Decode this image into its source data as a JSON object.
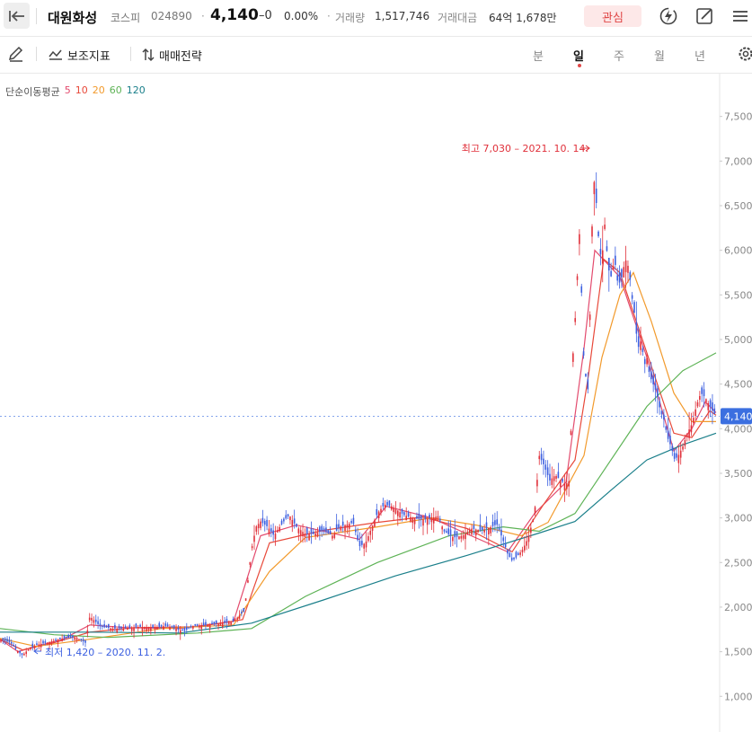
{
  "header": {
    "stock_name": "대원화성",
    "market": "코스피",
    "code": "024890",
    "separator": "·",
    "price": "4,140",
    "change": "–0",
    "change_pct": "0.00%",
    "volume_label": "거래량",
    "volume_value": "1,517,746",
    "amount_label": "거래대금",
    "amount_value": "64억 1,678만",
    "favorite_label": "관심"
  },
  "toolbar": {
    "indicator_label": "보조지표",
    "strategy_label": "매매전략",
    "periods": [
      "분",
      "일",
      "주",
      "월",
      "년"
    ],
    "active_period": "일"
  },
  "legend": {
    "title": "단순이동평균",
    "items": [
      {
        "label": "5",
        "color": "#e34b6e"
      },
      {
        "label": "10",
        "color": "#e8493a"
      },
      {
        "label": "20",
        "color": "#f29a2c"
      },
      {
        "label": "60",
        "color": "#5eb356"
      },
      {
        "label": "120",
        "color": "#1a7f8a"
      }
    ]
  },
  "colors": {
    "up": "#e0303a",
    "down": "#3b5fe0",
    "accent": "#e04848",
    "price_tag": "#3b6fe0"
  },
  "chart_data": {
    "type": "candlestick",
    "y_ticks": [
      "7,500",
      "7,000",
      "6,500",
      "6,000",
      "5,500",
      "5,000",
      "4,500",
      "4,000",
      "3,500",
      "3,000",
      "2,500",
      "2,000",
      "1,500",
      "1,000"
    ],
    "ylim": [
      600,
      7980
    ],
    "current_price": 4140,
    "current_price_label": "4,140",
    "high_annotation": "최고 7,030 – 2021. 10. 14.",
    "low_annotation": "최저 1,420 – 2020. 11. 2.",
    "close_anchors": [
      [
        0,
        1640
      ],
      [
        12,
        1600
      ],
      [
        20,
        1500
      ],
      [
        25,
        1460
      ],
      [
        32,
        1530
      ],
      [
        42,
        1580
      ],
      [
        60,
        1620
      ],
      [
        70,
        1650
      ],
      [
        85,
        1660
      ],
      [
        95,
        1600
      ],
      [
        100,
        1900
      ],
      [
        105,
        1850
      ],
      [
        112,
        1780
      ],
      [
        125,
        1760
      ],
      [
        140,
        1760
      ],
      [
        155,
        1780
      ],
      [
        170,
        1770
      ],
      [
        185,
        1790
      ],
      [
        195,
        1760
      ],
      [
        205,
        1730
      ],
      [
        215,
        1790
      ],
      [
        230,
        1800
      ],
      [
        245,
        1820
      ],
      [
        258,
        1830
      ],
      [
        265,
        1890
      ],
      [
        272,
        1960
      ],
      [
        280,
        2650
      ],
      [
        285,
        2900
      ],
      [
        290,
        2960
      ],
      [
        298,
        2900
      ],
      [
        305,
        2800
      ],
      [
        310,
        2880
      ],
      [
        318,
        2990
      ],
      [
        322,
        3030
      ],
      [
        330,
        2900
      ],
      [
        340,
        2820
      ],
      [
        350,
        2820
      ],
      [
        360,
        2860
      ],
      [
        370,
        2800
      ],
      [
        378,
        2900
      ],
      [
        385,
        2920
      ],
      [
        393,
        2950
      ],
      [
        400,
        2680
      ],
      [
        407,
        2720
      ],
      [
        414,
        2900
      ],
      [
        420,
        3050
      ],
      [
        428,
        3150
      ],
      [
        436,
        3130
      ],
      [
        450,
        3030
      ],
      [
        460,
        3000
      ],
      [
        470,
        2980
      ],
      [
        480,
        3000
      ],
      [
        488,
        3020
      ],
      [
        494,
        2850
      ],
      [
        505,
        2780
      ],
      [
        515,
        2800
      ],
      [
        525,
        2880
      ],
      [
        535,
        2860
      ],
      [
        545,
        2890
      ],
      [
        553,
        2930
      ],
      [
        560,
        2750
      ],
      [
        565,
        2600
      ],
      [
        570,
        2520
      ],
      [
        575,
        2560
      ],
      [
        582,
        2650
      ],
      [
        588,
        2780
      ],
      [
        595,
        3050
      ],
      [
        600,
        3700
      ],
      [
        605,
        3600
      ],
      [
        612,
        3420
      ],
      [
        618,
        3480
      ],
      [
        624,
        3420
      ],
      [
        630,
        3380
      ],
      [
        634,
        3420
      ],
      [
        638,
        4900
      ],
      [
        640,
        5200
      ],
      [
        643,
        5800
      ],
      [
        645,
        6200
      ],
      [
        650,
        4700
      ],
      [
        655,
        4400
      ],
      [
        658,
        6000
      ],
      [
        661,
        6800
      ],
      [
        664,
        6500
      ],
      [
        667,
        6000
      ],
      [
        670,
        5900
      ],
      [
        673,
        6300
      ],
      [
        677,
        5800
      ],
      [
        680,
        5700
      ],
      [
        684,
        5900
      ],
      [
        688,
        5600
      ],
      [
        692,
        5700
      ],
      [
        696,
        5900
      ],
      [
        700,
        5800
      ],
      [
        703,
        5500
      ],
      [
        706,
        5300
      ],
      [
        710,
        4900
      ],
      [
        714,
        5000
      ],
      [
        717,
        4700
      ],
      [
        720,
        4800
      ],
      [
        723,
        4600
      ],
      [
        727,
        4500
      ],
      [
        731,
        4400
      ],
      [
        735,
        4200
      ],
      [
        739,
        4100
      ],
      [
        743,
        3900
      ],
      [
        747,
        3800
      ],
      [
        751,
        3650
      ],
      [
        755,
        3700
      ],
      [
        760,
        3800
      ],
      [
        765,
        3950
      ],
      [
        770,
        4050
      ],
      [
        775,
        4250
      ],
      [
        780,
        4400
      ],
      [
        785,
        4350
      ],
      [
        790,
        4250
      ],
      [
        793,
        4200
      ],
      [
        797,
        4140
      ]
    ],
    "ma": [
      {
        "name": "5",
        "points": [
          [
            0,
            1640
          ],
          [
            20,
            1500
          ],
          [
            40,
            1560
          ],
          [
            70,
            1640
          ],
          [
            100,
            1800
          ],
          [
            140,
            1770
          ],
          [
            200,
            1760
          ],
          [
            260,
            1840
          ],
          [
            290,
            2800
          ],
          [
            330,
            2920
          ],
          [
            400,
            2760
          ],
          [
            430,
            3130
          ],
          [
            480,
            3000
          ],
          [
            520,
            2820
          ],
          [
            565,
            2620
          ],
          [
            595,
            3050
          ],
          [
            630,
            3400
          ],
          [
            650,
            4900
          ],
          [
            662,
            6000
          ],
          [
            690,
            5700
          ],
          [
            720,
            4800
          ],
          [
            750,
            3750
          ],
          [
            770,
            4000
          ],
          [
            785,
            4300
          ],
          [
            797,
            4180
          ]
        ]
      },
      {
        "name": "10",
        "points": [
          [
            0,
            1640
          ],
          [
            25,
            1520
          ],
          [
            60,
            1600
          ],
          [
            100,
            1720
          ],
          [
            150,
            1770
          ],
          [
            220,
            1780
          ],
          [
            270,
            1860
          ],
          [
            300,
            2720
          ],
          [
            360,
            2860
          ],
          [
            420,
            2950
          ],
          [
            470,
            3010
          ],
          [
            520,
            2880
          ],
          [
            570,
            2620
          ],
          [
            605,
            3150
          ],
          [
            640,
            3650
          ],
          [
            655,
            4600
          ],
          [
            672,
            5900
          ],
          [
            690,
            5750
          ],
          [
            720,
            4850
          ],
          [
            750,
            3950
          ],
          [
            770,
            3900
          ],
          [
            790,
            4200
          ],
          [
            797,
            4150
          ]
        ]
      },
      {
        "name": "20",
        "points": [
          [
            0,
            1650
          ],
          [
            40,
            1560
          ],
          [
            100,
            1640
          ],
          [
            180,
            1760
          ],
          [
            260,
            1800
          ],
          [
            300,
            2400
          ],
          [
            340,
            2780
          ],
          [
            420,
            2900
          ],
          [
            480,
            3000
          ],
          [
            530,
            2920
          ],
          [
            580,
            2800
          ],
          [
            610,
            2950
          ],
          [
            650,
            3700
          ],
          [
            670,
            4800
          ],
          [
            690,
            5500
          ],
          [
            705,
            5750
          ],
          [
            725,
            5200
          ],
          [
            750,
            4400
          ],
          [
            770,
            4080
          ],
          [
            797,
            4080
          ]
        ]
      },
      {
        "name": "60",
        "points": [
          [
            0,
            1760
          ],
          [
            60,
            1690
          ],
          [
            120,
            1660
          ],
          [
            220,
            1710
          ],
          [
            280,
            1760
          ],
          [
            340,
            2120
          ],
          [
            420,
            2500
          ],
          [
            500,
            2800
          ],
          [
            560,
            2900
          ],
          [
            600,
            2850
          ],
          [
            640,
            3050
          ],
          [
            680,
            3650
          ],
          [
            720,
            4250
          ],
          [
            760,
            4650
          ],
          [
            797,
            4850
          ]
        ]
      },
      {
        "name": "120",
        "points": [
          [
            0,
            1720
          ],
          [
            100,
            1720
          ],
          [
            200,
            1710
          ],
          [
            280,
            1820
          ],
          [
            360,
            2080
          ],
          [
            440,
            2350
          ],
          [
            520,
            2580
          ],
          [
            600,
            2830
          ],
          [
            640,
            2960
          ],
          [
            680,
            3310
          ],
          [
            720,
            3650
          ],
          [
            760,
            3820
          ],
          [
            797,
            3950
          ]
        ]
      }
    ]
  }
}
